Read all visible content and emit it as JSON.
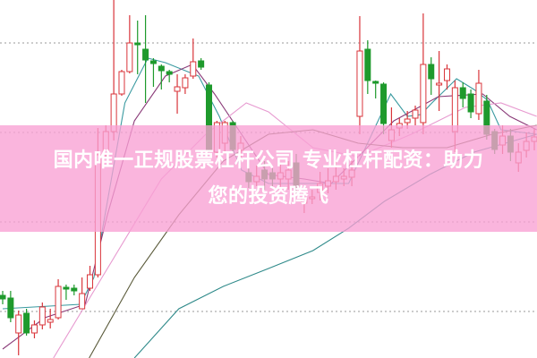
{
  "banner": {
    "line1": "国内唯一正规股票杠杆公司 专业杠杆配资：助力",
    "line2": "您的投资腾飞",
    "color": "#f8a0d4"
  },
  "chart_data": {
    "type": "candlestick",
    "title": "",
    "xlabel": "",
    "ylabel": "",
    "ylim": [
      0,
      100
    ],
    "grid": true,
    "grid_values": [
      88,
      63,
      38,
      13
    ],
    "up_color": "#d9343a",
    "down_color": "#1e9a2c",
    "candles_ohlc": [
      [
        17.5,
        18.75,
        15,
        16.5
      ],
      [
        16.75,
        18.75,
        10,
        11.25
      ],
      [
        7,
        13.25,
        0.75,
        12
      ],
      [
        12.5,
        13.75,
        6.25,
        7
      ],
      [
        7,
        10.5,
        5.5,
        9.25
      ],
      [
        9.25,
        15.5,
        8,
        14.25
      ],
      [
        10,
        13.75,
        8.25,
        10.75
      ],
      [
        11.25,
        22,
        10.75,
        20
      ],
      [
        19.75,
        20.5,
        16.25,
        19.25
      ],
      [
        19.5,
        20.5,
        17.5,
        18.75
      ],
      [
        13.75,
        22.5,
        13.75,
        18
      ],
      [
        19.5,
        25.75,
        18.75,
        23.25
      ],
      [
        23.25,
        64.25,
        22.5,
        56.75
      ],
      [
        57,
        65,
        56.25,
        63.25
      ],
      [
        63.25,
        100,
        60.75,
        73.75
      ],
      [
        73.75,
        80.5,
        73.25,
        80
      ],
      [
        80,
        95.75,
        79.5,
        88
      ],
      [
        88,
        94.25,
        79.25,
        87.5
      ],
      [
        86.25,
        95.75,
        71.25,
        83.25
      ],
      [
        83,
        83.75,
        75.75,
        82.25
      ],
      [
        81.5,
        82,
        75,
        80.25
      ],
      [
        80,
        80.5,
        77,
        79.25
      ],
      [
        74.5,
        79.25,
        68.25,
        75.75
      ],
      [
        75.5,
        79.25,
        73.75,
        78.25
      ],
      [
        78.75,
        89.25,
        78,
        82.75
      ],
      [
        83,
        83.75,
        80.5,
        81.25
      ],
      [
        76.25,
        77,
        57.5,
        58.25
      ],
      [
        57.5,
        66.25,
        56,
        65.75
      ],
      [
        60,
        66.25,
        57.5,
        65.75
      ],
      [
        65.75,
        66.25,
        57.5,
        58.25
      ],
      [
        58,
        62,
        55,
        60
      ],
      [
        51.75,
        53.75,
        47.5,
        49.25
      ],
      [
        49.25,
        53.75,
        48,
        50.75
      ],
      [
        52.5,
        55,
        47,
        50
      ],
      [
        51.75,
        53,
        48,
        50
      ],
      [
        50,
        54,
        47,
        51.75
      ],
      [
        50,
        55,
        47,
        52.5
      ],
      [
        54.5,
        57,
        46,
        48.25
      ],
      [
        43.25,
        46,
        40.5,
        44.5
      ],
      [
        44.5,
        47,
        43,
        45
      ],
      [
        46.25,
        52,
        44,
        48.75
      ],
      [
        48,
        53,
        46,
        49.5
      ],
      [
        49.25,
        55,
        47,
        50.75
      ],
      [
        50,
        53,
        48,
        50.75
      ],
      [
        50.5,
        55,
        48,
        52.5
      ],
      [
        67.5,
        95.5,
        62.5,
        85.75
      ],
      [
        86.25,
        88.75,
        73.75,
        77.5
      ],
      [
        77.25,
        77.5,
        72.5,
        76.75
      ],
      [
        76.5,
        77,
        62.5,
        65.5
      ],
      [
        60.75,
        70,
        58.75,
        63.75
      ],
      [
        64.25,
        67,
        62,
        65.5
      ],
      [
        65.75,
        69,
        64,
        66.75
      ],
      [
        67,
        70.5,
        65,
        69.25
      ],
      [
        65.75,
        96.25,
        62.5,
        82
      ],
      [
        82,
        84,
        73.5,
        78
      ],
      [
        76.25,
        85.75,
        69,
        76.75
      ],
      [
        77.5,
        82,
        75,
        80.75
      ],
      [
        63.25,
        77.5,
        57.5,
        75.5
      ],
      [
        75.5,
        77,
        70,
        72.5
      ],
      [
        73.75,
        75,
        67,
        68.75
      ],
      [
        68.25,
        80.5,
        66.5,
        76.75
      ],
      [
        71.75,
        73.5,
        61,
        62.5
      ],
      [
        63.25,
        64,
        57,
        58.25
      ],
      [
        59.5,
        65,
        57,
        62
      ],
      [
        62,
        64,
        55,
        57.5
      ],
      [
        54.5,
        60,
        52,
        57.5
      ],
      [
        58,
        63,
        56,
        60.5
      ],
      [
        60.5,
        64,
        58,
        61.75
      ]
    ],
    "moving_averages": [
      {
        "color": "#3a9aa0",
        "points": [
          [
            0,
            13.75
          ],
          [
            9.8,
            15
          ],
          [
            11.5,
            22.5
          ],
          [
            15.4,
            71.25
          ],
          [
            18.3,
            83.75
          ],
          [
            20.5,
            82.5
          ],
          [
            24.7,
            78.75
          ],
          [
            27.3,
            67.5
          ],
          [
            30.1,
            52.5
          ],
          [
            33.5,
            48.75
          ],
          [
            43.6,
            48.75
          ],
          [
            48.9,
            73.75
          ],
          [
            51,
            67.5
          ],
          [
            52.7,
            68
          ],
          [
            54.1,
            71.25
          ],
          [
            57.2,
            78
          ],
          [
            59.4,
            75
          ],
          [
            61.1,
            72
          ],
          [
            62.8,
            63.75
          ],
          [
            67.3,
            62.5
          ]
        ]
      },
      {
        "color": "#8a3a78",
        "points": [
          [
            0,
            2.5
          ],
          [
            5.3,
            11.25
          ],
          [
            10.4,
            15
          ],
          [
            13.2,
            40
          ],
          [
            16.6,
            66.25
          ],
          [
            20.5,
            78.75
          ],
          [
            23.9,
            82
          ],
          [
            26.7,
            73.75
          ],
          [
            30.1,
            62.5
          ],
          [
            33.5,
            51.25
          ],
          [
            38,
            50
          ],
          [
            41.4,
            48.75
          ],
          [
            44.8,
            56.25
          ],
          [
            49.3,
            66.25
          ],
          [
            54.9,
            73
          ],
          [
            60.5,
            73.75
          ],
          [
            63.9,
            67.5
          ],
          [
            67.3,
            63.75
          ]
        ]
      },
      {
        "color": "#e79ad0",
        "points": [
          [
            6.4,
            0
          ],
          [
            13.2,
            25
          ],
          [
            20,
            50
          ],
          [
            25.6,
            62.5
          ],
          [
            30.7,
            71.25
          ],
          [
            33.5,
            68.75
          ],
          [
            39.1,
            58.75
          ],
          [
            44.8,
            56.25
          ],
          [
            51.5,
            62.5
          ],
          [
            58.3,
            70
          ],
          [
            62.8,
            71.25
          ],
          [
            67.3,
            67.5
          ]
        ]
      },
      {
        "color": "#5a5a3a",
        "points": [
          [
            10.9,
            0
          ],
          [
            16.6,
            22.5
          ],
          [
            22.2,
            40
          ],
          [
            27.8,
            55
          ],
          [
            33.5,
            62.5
          ],
          [
            39.1,
            63.75
          ],
          [
            44.8,
            60
          ],
          [
            50.4,
            58.75
          ],
          [
            56,
            58.75
          ],
          [
            61.7,
            62.5
          ],
          [
            67.3,
            65
          ]
        ]
      },
      {
        "color": "#2f8a8a",
        "points": [
          [
            16.6,
            0
          ],
          [
            22.2,
            13.75
          ],
          [
            27.8,
            20
          ],
          [
            33.5,
            25
          ],
          [
            39.1,
            30
          ],
          [
            43.6,
            36.25
          ],
          [
            48.1,
            43.75
          ],
          [
            53.8,
            51.25
          ],
          [
            59.4,
            57.5
          ],
          [
            67.3,
            62.5
          ]
        ]
      }
    ]
  }
}
